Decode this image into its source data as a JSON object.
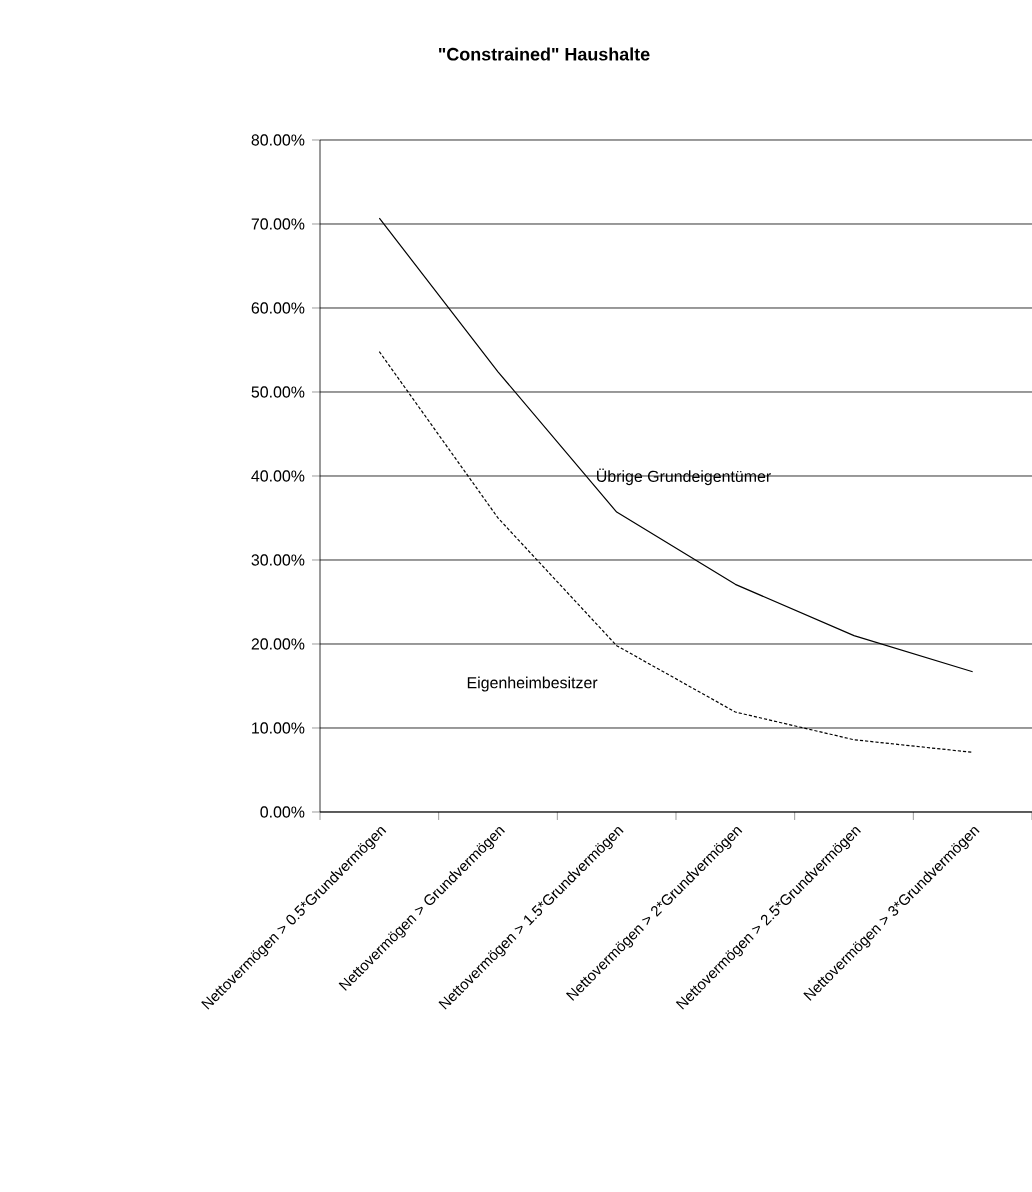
{
  "chart_data": {
    "type": "line",
    "title": "\"Constrained\" Haushalte",
    "categories": [
      "Nettovermögen > 0.5*Grundvermögen",
      "Nettovermögen > Grundvermögen",
      "Nettovermögen > 1.5*Grundvermögen",
      "Nettovermögen > 2*Grundvermögen",
      "Nettovermögen > 2.5*Grundvermögen",
      "Nettovermögen > 3*Grundvermögen"
    ],
    "series": [
      {
        "name": "Übrige Grundeigentümer",
        "color": "#000000",
        "line_style": "solid",
        "values": [
          70.7,
          52.4,
          35.7,
          27.1,
          21.0,
          16.7
        ]
      },
      {
        "name": "Eigenheimbesitzer",
        "color": "#000000",
        "line_style": "dotted",
        "values": [
          54.8,
          35.0,
          19.8,
          11.9,
          8.6,
          7.1
        ]
      }
    ],
    "ylim": [
      0,
      80
    ],
    "yticks": [
      {
        "value": 0,
        "label": "0.00%"
      },
      {
        "value": 10,
        "label": "10.00%"
      },
      {
        "value": 20,
        "label": "20.00%"
      },
      {
        "value": 30,
        "label": "30.00%"
      },
      {
        "value": 40,
        "label": "40.00%"
      },
      {
        "value": 50,
        "label": "50.00%"
      },
      {
        "value": 60,
        "label": "60.00%"
      },
      {
        "value": 70,
        "label": "70.00%"
      },
      {
        "value": 80,
        "label": "80.00%"
      }
    ],
    "grid": "y",
    "legend": false,
    "marker": "none"
  }
}
